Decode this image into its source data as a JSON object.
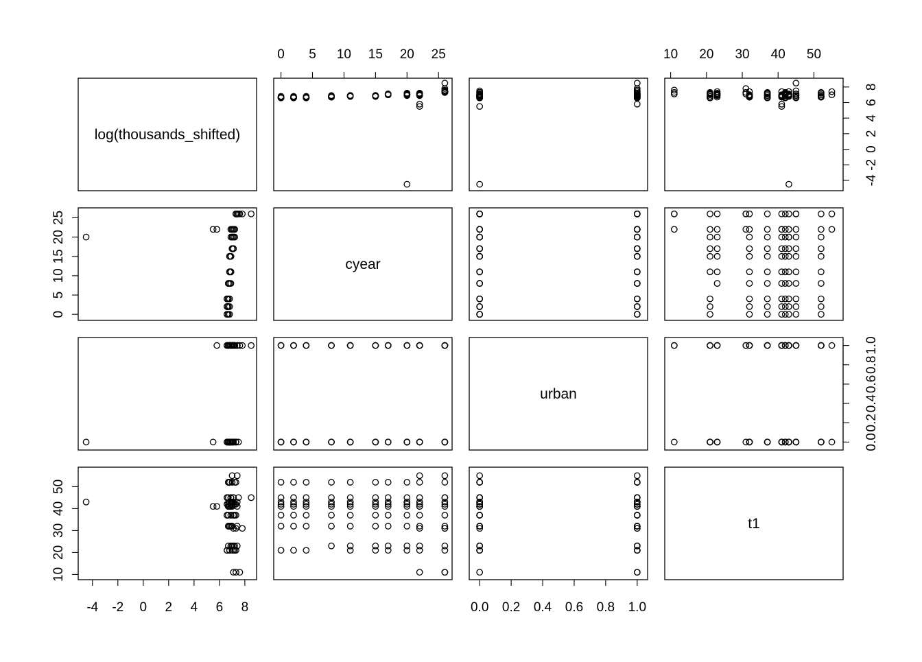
{
  "chart_data": {
    "type": "scatter",
    "title": "",
    "variables": [
      {
        "name": "log(thousands_shifted)",
        "range": [
          -4.8,
          8.6
        ],
        "ticks": [
          -4,
          -2,
          0,
          2,
          4,
          6,
          8
        ],
        "tick_labels": [
          "-4",
          "-2",
          "0",
          "2",
          "4",
          "6",
          "8"
        ]
      },
      {
        "name": "cyear",
        "range": [
          -0.5,
          26.5
        ],
        "ticks": [
          0,
          5,
          10,
          15,
          20,
          25
        ],
        "tick_labels": [
          "0",
          "5",
          "10",
          "15",
          "20",
          "25"
        ]
      },
      {
        "name": "urban",
        "range": [
          -0.04,
          1.04
        ],
        "ticks": [
          0,
          0.2,
          0.4,
          0.6,
          0.8,
          1.0
        ],
        "tick_labels": [
          "0.0",
          "0.2",
          "0.4",
          "0.6",
          "0.8",
          "1.0"
        ]
      },
      {
        "name": "t1",
        "range": [
          9.5,
          57
        ],
        "ticks": [
          10,
          20,
          30,
          40,
          50
        ],
        "tick_labels": [
          "10",
          "20",
          "30",
          "40",
          "50"
        ]
      }
    ],
    "observations": [
      [
        6.6,
        0,
        0,
        21
      ],
      [
        6.7,
        0,
        0,
        32
      ],
      [
        6.6,
        0,
        1,
        37
      ],
      [
        6.7,
        0,
        0,
        41
      ],
      [
        6.6,
        0,
        1,
        42
      ],
      [
        6.8,
        0,
        0,
        43
      ],
      [
        6.6,
        0,
        1,
        45
      ],
      [
        6.7,
        0,
        0,
        52
      ],
      [
        6.6,
        2,
        1,
        21
      ],
      [
        6.7,
        2,
        0,
        32
      ],
      [
        6.6,
        2,
        1,
        37
      ],
      [
        6.7,
        2,
        0,
        41
      ],
      [
        6.6,
        2,
        1,
        42
      ],
      [
        6.8,
        2,
        0,
        43
      ],
      [
        6.6,
        2,
        1,
        45
      ],
      [
        6.7,
        2,
        0,
        52
      ],
      [
        6.6,
        4,
        0,
        21
      ],
      [
        6.7,
        4,
        1,
        32
      ],
      [
        6.6,
        4,
        0,
        37
      ],
      [
        6.7,
        4,
        1,
        41
      ],
      [
        6.6,
        4,
        0,
        42
      ],
      [
        6.8,
        4,
        1,
        43
      ],
      [
        6.6,
        4,
        0,
        45
      ],
      [
        6.7,
        4,
        1,
        52
      ],
      [
        6.7,
        8,
        0,
        23
      ],
      [
        6.8,
        8,
        1,
        32
      ],
      [
        6.7,
        8,
        0,
        37
      ],
      [
        6.8,
        8,
        1,
        41
      ],
      [
        6.7,
        8,
        0,
        42
      ],
      [
        6.9,
        8,
        1,
        43
      ],
      [
        6.7,
        8,
        0,
        45
      ],
      [
        6.8,
        8,
        1,
        52
      ],
      [
        6.8,
        11,
        1,
        21
      ],
      [
        6.9,
        11,
        0,
        23
      ],
      [
        6.8,
        11,
        1,
        32
      ],
      [
        6.9,
        11,
        0,
        37
      ],
      [
        6.8,
        11,
        1,
        41
      ],
      [
        6.9,
        11,
        0,
        42
      ],
      [
        6.8,
        11,
        1,
        43
      ],
      [
        6.9,
        11,
        0,
        45
      ],
      [
        6.8,
        11,
        1,
        52
      ],
      [
        6.8,
        15,
        0,
        21
      ],
      [
        6.9,
        15,
        1,
        23
      ],
      [
        6.8,
        15,
        0,
        32
      ],
      [
        6.9,
        15,
        1,
        37
      ],
      [
        6.8,
        15,
        0,
        41
      ],
      [
        6.9,
        15,
        1,
        42
      ],
      [
        6.8,
        15,
        0,
        43
      ],
      [
        6.9,
        15,
        1,
        45
      ],
      [
        6.8,
        15,
        0,
        52
      ],
      [
        7.0,
        17,
        1,
        21
      ],
      [
        7.1,
        17,
        0,
        23
      ],
      [
        7.0,
        17,
        1,
        32
      ],
      [
        7.1,
        17,
        0,
        37
      ],
      [
        7.0,
        17,
        1,
        41
      ],
      [
        7.1,
        17,
        0,
        42
      ],
      [
        7.0,
        17,
        1,
        43
      ],
      [
        7.1,
        17,
        0,
        45
      ],
      [
        7.0,
        17,
        1,
        52
      ],
      [
        7.1,
        20,
        0,
        21
      ],
      [
        7.2,
        20,
        1,
        23
      ],
      [
        7.0,
        20,
        0,
        32
      ],
      [
        7.1,
        20,
        1,
        37
      ],
      [
        6.9,
        20,
        0,
        41
      ],
      [
        7.2,
        20,
        1,
        42
      ],
      [
        7.0,
        20,
        0,
        43
      ],
      [
        7.1,
        20,
        1,
        45
      ],
      [
        7.0,
        20,
        0,
        52
      ],
      [
        -4.5,
        20,
        0,
        43
      ],
      [
        7.2,
        22,
        1,
        21
      ],
      [
        7.0,
        22,
        0,
        23
      ],
      [
        7.1,
        22,
        1,
        31
      ],
      [
        6.9,
        22,
        0,
        32
      ],
      [
        7.2,
        22,
        1,
        37
      ],
      [
        5.5,
        22,
        0,
        41
      ],
      [
        5.8,
        22,
        1,
        41
      ],
      [
        7.0,
        22,
        0,
        42
      ],
      [
        7.1,
        22,
        1,
        43
      ],
      [
        6.9,
        22,
        0,
        45
      ],
      [
        7.2,
        22,
        1,
        52
      ],
      [
        7.0,
        22,
        0,
        55
      ],
      [
        7.1,
        22,
        1,
        11
      ],
      [
        7.3,
        26,
        0,
        21
      ],
      [
        7.4,
        26,
        1,
        23
      ],
      [
        7.3,
        26,
        0,
        31
      ],
      [
        7.4,
        26,
        1,
        32
      ],
      [
        7.3,
        26,
        0,
        37
      ],
      [
        7.4,
        26,
        1,
        41
      ],
      [
        7.3,
        26,
        0,
        42
      ],
      [
        7.4,
        26,
        1,
        43
      ],
      [
        8.5,
        26,
        1,
        45
      ],
      [
        7.3,
        26,
        0,
        52
      ],
      [
        7.4,
        26,
        1,
        55
      ],
      [
        7.3,
        26,
        0,
        11
      ],
      [
        7.6,
        26,
        1,
        11
      ],
      [
        7.8,
        26,
        1,
        31
      ],
      [
        7.5,
        26,
        0,
        45
      ]
    ]
  }
}
